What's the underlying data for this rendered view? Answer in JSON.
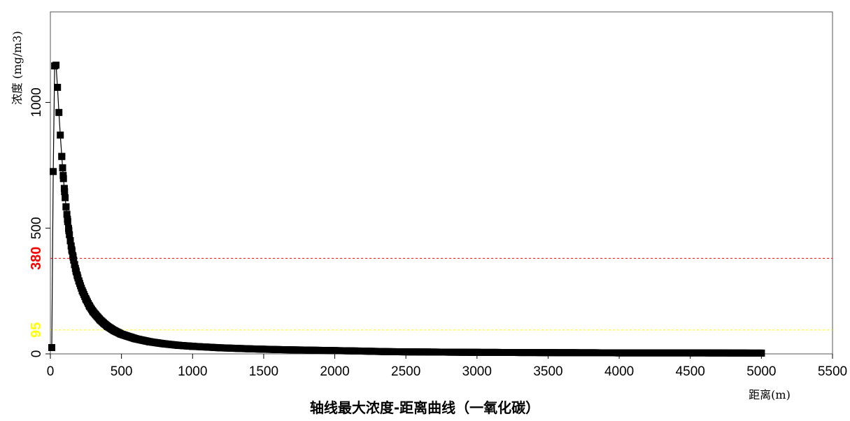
{
  "chart_data": {
    "type": "line",
    "title": "轴线最大浓度-距离曲线（一氧化碳）",
    "xlabel": "距离(m)",
    "ylabel": "浓度 (mg/m3)",
    "xlim": [
      0,
      5500
    ],
    "ylim": [
      0,
      1360
    ],
    "x_ticks": [
      "0",
      "500",
      "1000",
      "1500",
      "2000",
      "2500",
      "3000",
      "3500",
      "4000",
      "4500",
      "5000",
      "5500"
    ],
    "y_ticks": [
      "0",
      "500",
      "1000"
    ],
    "marker": "square",
    "line_color": "#000000",
    "thresholds": [
      {
        "value": 380,
        "label": "380",
        "color": "#ff0000"
      },
      {
        "value": 95,
        "label": "95",
        "color": "#ffff00"
      }
    ],
    "series": [
      {
        "values_note": "",
        "x": [
          10,
          20,
          30,
          40,
          50,
          60,
          70,
          80,
          90,
          100,
          110,
          120,
          130,
          140,
          150,
          160,
          170,
          180,
          190,
          200,
          225,
          250,
          275,
          300,
          350,
          400,
          450,
          500,
          600,
          700,
          800,
          900,
          1000,
          1200,
          1400,
          1600,
          1800,
          2000,
          2200,
          2350,
          2500,
          3000,
          3500,
          4000,
          4500,
          5000
        ],
        "y": [
          25,
          725,
          1145,
          1148,
          1060,
          960,
          870,
          785,
          710,
          645,
          585,
          535,
          490,
          450,
          415,
          385,
          355,
          330,
          310,
          290,
          250,
          218,
          190,
          168,
          135,
          110,
          92,
          78,
          60,
          48,
          40,
          34,
          30,
          24,
          20,
          17,
          15,
          13,
          11,
          9,
          8,
          6,
          5,
          4,
          4,
          3
        ]
      }
    ]
  }
}
